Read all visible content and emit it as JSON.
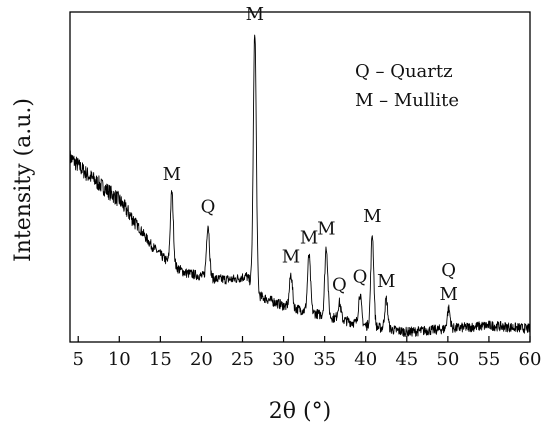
{
  "chart_data": {
    "type": "line",
    "xlabel": "2θ (°)",
    "ylabel": "Intensity (a.u.)",
    "xlim": [
      4,
      60
    ],
    "x_ticks": [
      5,
      10,
      15,
      20,
      25,
      30,
      35,
      40,
      45,
      50,
      55,
      60
    ],
    "y_ticks_shown": false,
    "grid": false,
    "line_color": "#000000",
    "legend": {
      "placement": "top-right",
      "entries": [
        "Q – Quartz",
        "M – Mullite"
      ]
    },
    "peaks": [
      {
        "x": 16.4,
        "height": 0.22,
        "label": "M"
      },
      {
        "x": 20.8,
        "height": 0.16,
        "label": "Q"
      },
      {
        "x": 26.5,
        "height": 0.78,
        "label": "M"
      },
      {
        "x": 30.9,
        "height": 0.1,
        "label": "M"
      },
      {
        "x": 33.1,
        "height": 0.17,
        "label": "M"
      },
      {
        "x": 35.2,
        "height": 0.21,
        "label": "M"
      },
      {
        "x": 36.8,
        "height": 0.05,
        "label": "Q"
      },
      {
        "x": 39.3,
        "height": 0.09,
        "label": "Q"
      },
      {
        "x": 40.8,
        "height": 0.28,
        "label": "M"
      },
      {
        "x": 42.5,
        "height": 0.09,
        "label": "M"
      },
      {
        "x": 50.1,
        "height": 0.06,
        "label": "Q\nM"
      }
    ],
    "background": {
      "x": [
        4,
        6,
        8,
        10,
        12,
        14,
        16,
        18,
        20,
        22,
        24,
        25.5,
        27,
        30,
        35,
        40,
        45,
        50,
        55,
        60
      ],
      "level": [
        0.56,
        0.51,
        0.47,
        0.43,
        0.36,
        0.29,
        0.24,
        0.21,
        0.2,
        0.19,
        0.19,
        0.2,
        0.14,
        0.11,
        0.08,
        0.05,
        0.03,
        0.04,
        0.05,
        0.04
      ]
    },
    "noise_amplitude": 0.015
  }
}
